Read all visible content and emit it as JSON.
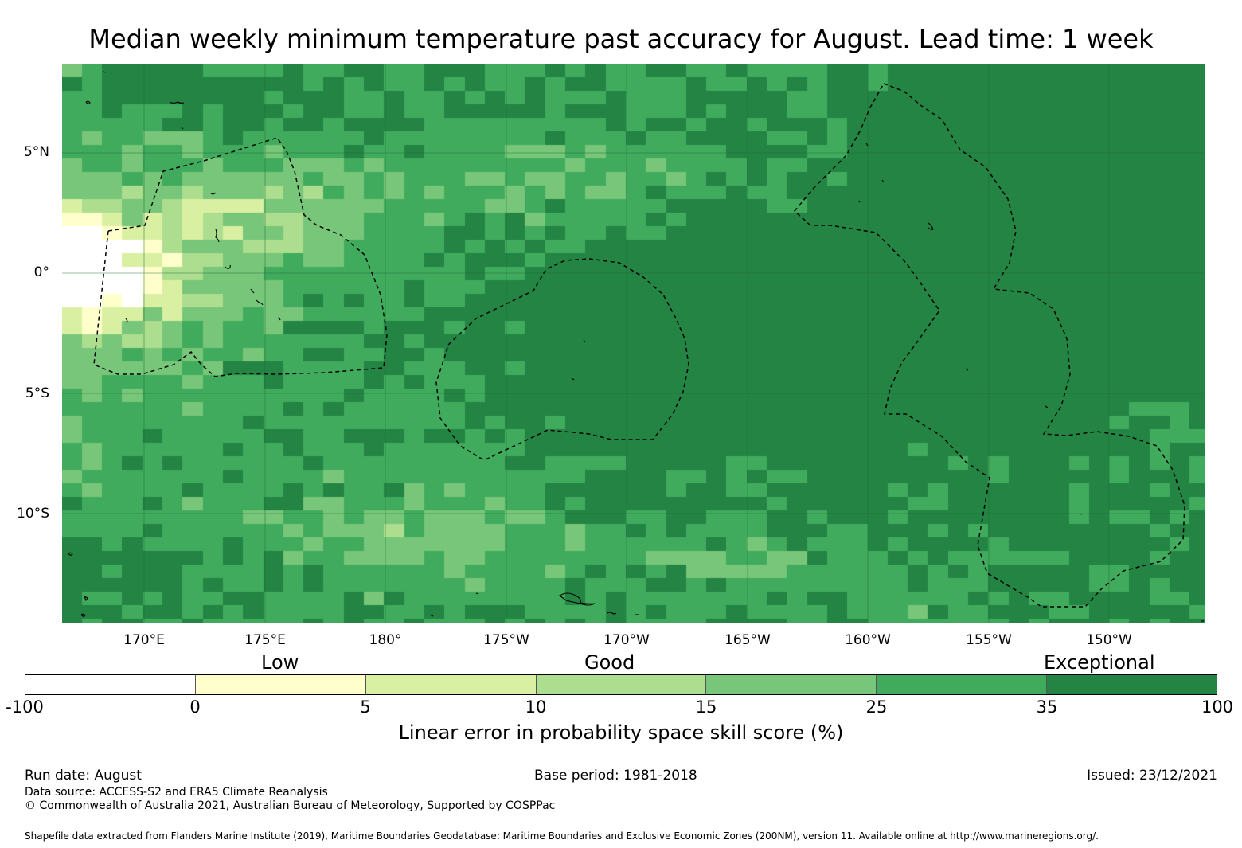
{
  "title": "Median weekly minimum temperature past accuracy for August. Lead time: 1 week",
  "lat_labels": [
    "5°N",
    "0°",
    "5°S",
    "10°S"
  ],
  "lon_labels": [
    "170°E",
    "175°E",
    "180°",
    "175°W",
    "170°W",
    "165°W",
    "160°W",
    "155°W",
    "150°W"
  ],
  "categories": [
    "Low",
    "Good",
    "Exceptional"
  ],
  "colorbar": {
    "ticks": [
      "-100",
      "0",
      "5",
      "10",
      "15",
      "25",
      "35",
      "100"
    ],
    "colors": [
      "#ffffff",
      "#ffffcc",
      "#d9f0a3",
      "#addd8e",
      "#78c679",
      "#41ab5d",
      "#238443"
    ],
    "label": "Linear error in probability space skill score (%)"
  },
  "footer": {
    "run_date": "Run date: August",
    "base_period": "Base period: 1981-2018",
    "issued": "Issued: 23/12/2021",
    "data_source": "Data source: ACCESS-S2 and ERA5 Climate Reanalysis",
    "copyright": "© Commonwealth of Australia 2021, Australian Bureau of Meteorology, Supported by COSPPac",
    "shapefile": "Shapefile data extracted from Flanders Marine Institute (2019), Maritime Boundaries Geodatabase: Maritime Boundaries and Exclusive Economic Zones (200NM), version 11. Available online at http://www.marineregions.org/."
  }
}
